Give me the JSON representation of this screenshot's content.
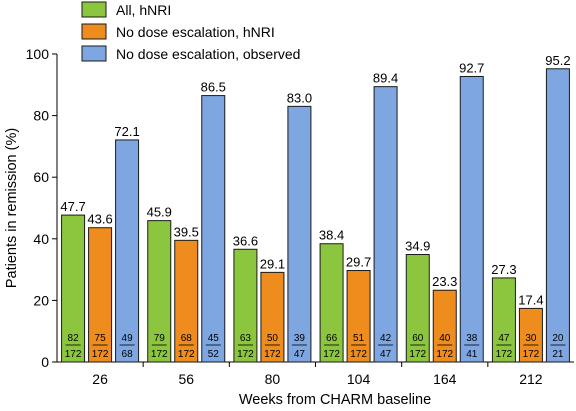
{
  "colors": {
    "series": [
      "#8cc63f",
      "#ef8c1e",
      "#7ea6e0"
    ],
    "stroke": "#1a1a1a"
  },
  "chart_data": {
    "type": "bar",
    "xlabel": "Weeks from CHARM baseline",
    "ylabel": "Patients in remission (%)",
    "ylim": [
      0,
      100
    ],
    "yticks": [
      0,
      20,
      40,
      60,
      80,
      100
    ],
    "categories": [
      "26",
      "56",
      "80",
      "104",
      "164",
      "212"
    ],
    "legend_position": "top-left",
    "grid": false,
    "series": [
      {
        "name": "All, hNRI",
        "values": [
          47.7,
          45.9,
          36.6,
          38.4,
          34.9,
          27.3
        ],
        "labels": [
          "47.7",
          "45.9",
          "36.6",
          "38.4",
          "34.9",
          "27.3"
        ],
        "num": [
          82,
          79,
          63,
          66,
          60,
          47
        ],
        "den": [
          172,
          172,
          172,
          172,
          172,
          172
        ]
      },
      {
        "name": "No dose escalation, hNRI",
        "values": [
          43.6,
          39.5,
          29.1,
          29.7,
          23.3,
          17.4
        ],
        "labels": [
          "43.6",
          "39.5",
          "29.1",
          "29.7",
          "23.3",
          "17.4"
        ],
        "num": [
          75,
          68,
          50,
          51,
          40,
          30
        ],
        "den": [
          172,
          172,
          172,
          172,
          172,
          172
        ]
      },
      {
        "name": "No dose escalation, observed",
        "values": [
          72.1,
          86.5,
          83.0,
          89.4,
          92.7,
          95.2
        ],
        "labels": [
          "72.1",
          "86.5",
          "83.0",
          "89.4",
          "92.7",
          "95.2"
        ],
        "num": [
          49,
          45,
          39,
          42,
          38,
          20
        ],
        "den": [
          68,
          52,
          47,
          47,
          41,
          21
        ]
      }
    ]
  }
}
